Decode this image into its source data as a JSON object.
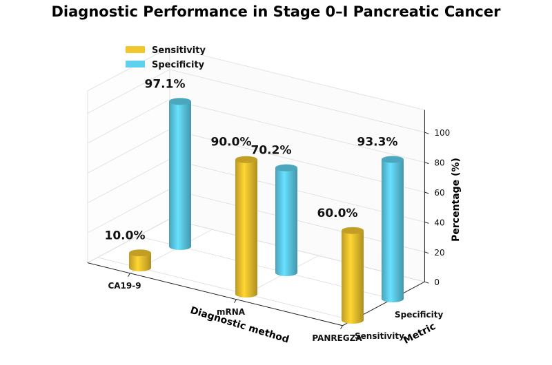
{
  "chart_data": {
    "type": "bar",
    "title": "Diagnostic Performance in Stage 0–I Pancreatic Cancer",
    "categories": [
      "CA19-9",
      "mRNA",
      "PANREGZA"
    ],
    "depth_categories": [
      "Sensitivity",
      "Specificity"
    ],
    "series": [
      {
        "name": "Sensitivity",
        "values": [
          10.0,
          90.0,
          60.0
        ],
        "labels": [
          "10.0%",
          "90.0%",
          "60.0%"
        ],
        "color": "#f2c62e"
      },
      {
        "name": "Specificity",
        "values": [
          97.1,
          70.2,
          93.3
        ],
        "labels": [
          "97.1%",
          "70.2%",
          "93.3%"
        ],
        "color": "#5fd0ee"
      }
    ],
    "xlabel": "Diagnostic method",
    "ylabel": "Metric",
    "zlabel": "Percentage (%)",
    "zticks": [
      "0",
      "20",
      "40",
      "60",
      "80",
      "100"
    ],
    "zlim": [
      0,
      115
    ],
    "legend_position": "top-left",
    "grid": true
  }
}
